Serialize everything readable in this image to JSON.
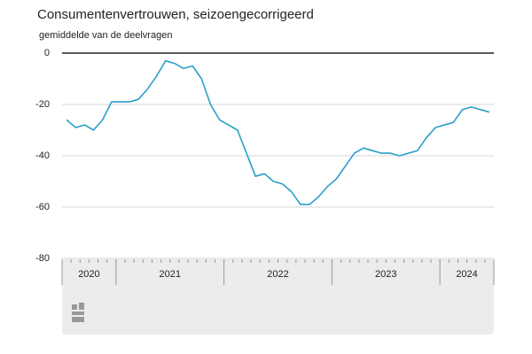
{
  "chart_data": {
    "type": "line",
    "title": "Consumentenvertrouwen, seizoengecorrigeerd",
    "subtitle": "gemiddelde van de deelvragen",
    "categories": [
      null,
      null,
      null,
      null,
      null,
      null,
      null,
      null,
      null,
      null,
      null,
      null,
      null,
      null,
      null,
      null,
      null,
      null,
      null,
      null,
      null,
      null,
      null,
      null,
      null,
      null,
      null,
      null,
      null,
      null,
      null,
      null,
      null,
      null,
      null,
      null,
      null,
      null,
      null,
      null,
      null,
      null,
      null,
      null,
      null,
      null,
      null,
      null
    ],
    "year_labels": [
      "2020",
      "2021",
      "2022",
      "2023",
      "2024"
    ],
    "year_months": [
      6,
      12,
      12,
      12,
      6
    ],
    "series": [
      {
        "name": "Consumentenvertrouwen",
        "color": "#2a9fc9",
        "values": [
          -26,
          -29,
          -28,
          -30,
          -26,
          -19,
          -19,
          -19,
          -18,
          -14,
          -9,
          -3,
          -4,
          -6,
          -5,
          -10,
          -20,
          -26,
          -28,
          -30,
          -39,
          -48,
          -47,
          -50,
          -51,
          -54,
          -59,
          -59,
          -56,
          -52,
          -49,
          -44,
          -39,
          -37,
          -38,
          -39,
          -39,
          -40,
          -39,
          -38,
          -33,
          -29,
          -28,
          -27,
          -22,
          -21,
          -22,
          -23
        ]
      }
    ],
    "ylim": [
      -80,
      0
    ],
    "yticks": [
      0,
      -20,
      -40,
      -60,
      -80
    ],
    "grid": true
  }
}
